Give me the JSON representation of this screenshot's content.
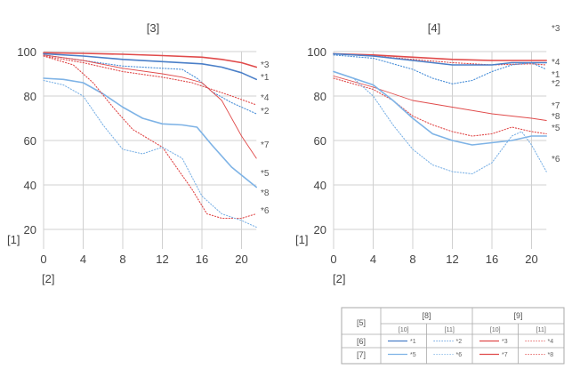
{
  "chart_data": [
    {
      "type": "line",
      "title": "[3]",
      "xlabel": "[2]",
      "ylabel": "[1]",
      "xlim": [
        0,
        21.5
      ],
      "ylim": [
        20,
        100
      ],
      "xticks": [
        "0",
        "4",
        "8",
        "12",
        "16",
        "20"
      ],
      "yticks": [
        "20",
        "40",
        "60",
        "80",
        "100"
      ],
      "grid": true,
      "series": [
        {
          "name": "*3",
          "color": "#e04a4a",
          "style": "solid",
          "x": [
            0,
            4,
            8,
            12,
            16,
            18,
            20,
            21.5
          ],
          "y": [
            99.5,
            99.2,
            98.8,
            98.2,
            97.5,
            96.5,
            95,
            93
          ]
        },
        {
          "name": "*1",
          "color": "#4a7fc8",
          "style": "solid",
          "x": [
            0,
            4,
            8,
            12,
            16,
            18,
            20,
            21.5
          ],
          "y": [
            99,
            98,
            96.5,
            95.5,
            94.5,
            93,
            90.5,
            87.5
          ]
        },
        {
          "name": "*4",
          "color": "#e04a4a",
          "style": "dotted",
          "x": [
            0,
            4,
            8,
            12,
            15,
            17,
            19,
            21.5
          ],
          "y": [
            98,
            95,
            91,
            88.5,
            86,
            83,
            80,
            76
          ]
        },
        {
          "name": "*2",
          "color": "#4a8fd8",
          "style": "dotted",
          "x": [
            0,
            4,
            8,
            12,
            14,
            15.5,
            17,
            19,
            21.5
          ],
          "y": [
            98.5,
            96,
            93.5,
            92.5,
            92,
            88,
            82,
            77,
            72
          ]
        },
        {
          "name": "*7",
          "color": "#e04a4a",
          "style": "solid",
          "thin": true,
          "x": [
            0,
            4,
            8,
            12,
            14,
            16,
            18,
            20,
            21.5
          ],
          "y": [
            98.5,
            96,
            92.5,
            90,
            88.5,
            86,
            78,
            62,
            52
          ]
        },
        {
          "name": "*5",
          "color": "#7eb3e6",
          "style": "solid",
          "x": [
            0,
            2,
            4,
            6,
            8,
            10,
            12,
            14,
            15.5,
            17,
            19,
            21.5
          ],
          "y": [
            88,
            87.5,
            86,
            81,
            75,
            70,
            67.5,
            67,
            66,
            58,
            48,
            39
          ]
        },
        {
          "name": "*8",
          "color": "#e04a4a",
          "style": "dotted",
          "x": [
            0,
            3,
            5,
            7,
            9,
            12,
            15,
            16.5,
            18,
            20,
            21.5
          ],
          "y": [
            98,
            94,
            86,
            75,
            65,
            57,
            38,
            27,
            25,
            25,
            27
          ]
        },
        {
          "name": "*6",
          "color": "#7eb3e6",
          "style": "dotted",
          "x": [
            0,
            2,
            4,
            6,
            8,
            10,
            12,
            14,
            16,
            18,
            20,
            21.5
          ],
          "y": [
            87,
            85,
            80,
            67,
            56,
            54,
            57,
            52,
            35,
            27,
            24,
            21
          ]
        }
      ],
      "series_labels": [
        "*3",
        "*1",
        "*4",
        "*2",
        "*7",
        "*5",
        "*8",
        "*6"
      ]
    },
    {
      "type": "line",
      "title": "[4]",
      "xlabel": "[2]",
      "ylabel": "[1]",
      "xlim": [
        0,
        21.5
      ],
      "ylim": [
        20,
        100
      ],
      "xticks": [
        "0",
        "4",
        "8",
        "12",
        "16",
        "20"
      ],
      "yticks": [
        "20",
        "40",
        "60",
        "80",
        "100"
      ],
      "grid": true,
      "series": [
        {
          "name": "*3",
          "color": "#e04a4a",
          "style": "solid",
          "x": [
            0,
            4,
            8,
            12,
            16,
            20,
            21.5
          ],
          "y": [
            99,
            98.5,
            97.5,
            96.5,
            96,
            96,
            96
          ]
        },
        {
          "name": "*4",
          "color": "#e04a4a",
          "style": "dotted",
          "x": [
            0,
            4,
            8,
            12,
            16,
            20,
            21.5
          ],
          "y": [
            99,
            98,
            96.5,
            95,
            94,
            94.5,
            94
          ]
        },
        {
          "name": "*1",
          "color": "#4a7fc8",
          "style": "solid",
          "x": [
            0,
            4,
            8,
            12,
            16,
            18,
            20,
            21.5
          ],
          "y": [
            99,
            98,
            96,
            94,
            94,
            95,
            95,
            95
          ]
        },
        {
          "name": "*2",
          "color": "#4a8fd8",
          "style": "dotted",
          "x": [
            0,
            4,
            8,
            10,
            12,
            14,
            16,
            18,
            20,
            21.5
          ],
          "y": [
            98.5,
            97,
            92,
            88,
            85.5,
            87,
            91,
            94,
            95,
            92
          ]
        },
        {
          "name": "*7",
          "color": "#e04a4a",
          "style": "solid",
          "thin": true,
          "x": [
            0,
            4,
            8,
            12,
            16,
            20,
            21.5
          ],
          "y": [
            89,
            84,
            78,
            75,
            72,
            70,
            69
          ]
        },
        {
          "name": "*8",
          "color": "#e04a4a",
          "style": "dotted",
          "x": [
            0,
            4,
            6,
            8,
            10,
            12,
            14,
            16,
            18,
            20,
            21.5
          ],
          "y": [
            88,
            83,
            78,
            71,
            67,
            64,
            62,
            63,
            66,
            64,
            63
          ]
        },
        {
          "name": "*5",
          "color": "#7eb3e6",
          "style": "solid",
          "x": [
            0,
            4,
            6,
            8,
            10,
            12,
            14,
            16,
            18,
            20,
            21.5
          ],
          "y": [
            91,
            85,
            78,
            70,
            63,
            60,
            58,
            59,
            60,
            62,
            62
          ]
        },
        {
          "name": "*6",
          "color": "#7eb3e6",
          "style": "dotted",
          "x": [
            0,
            2,
            4,
            6,
            8,
            10,
            12,
            14,
            16,
            18,
            19,
            20,
            21.5
          ],
          "y": [
            91,
            88,
            80,
            67,
            56,
            49,
            46,
            45,
            50,
            62,
            64,
            58,
            46
          ]
        }
      ],
      "series_labels": [
        "*3",
        "*4",
        "*1",
        "*2",
        "*7",
        "*8",
        "*5",
        "*6"
      ]
    }
  ],
  "legend_table": {
    "corner": "[5]",
    "groups": [
      "[8]",
      "[9]"
    ],
    "subheads": [
      "[10]",
      "[11]",
      "[10]",
      "[11]"
    ],
    "rows": [
      {
        "label": "[6]",
        "cells": [
          {
            "name": "*1",
            "color": "#4a7fc8",
            "style": "solid"
          },
          {
            "name": "*2",
            "color": "#4a8fd8",
            "style": "dotted"
          },
          {
            "name": "*3",
            "color": "#e04a4a",
            "style": "solid"
          },
          {
            "name": "*4",
            "color": "#e04a4a",
            "style": "dotted"
          }
        ]
      },
      {
        "label": "[7]",
        "cells": [
          {
            "name": "*5",
            "color": "#7eb3e6",
            "style": "solid"
          },
          {
            "name": "*6",
            "color": "#7eb3e6",
            "style": "dotted"
          },
          {
            "name": "*7",
            "color": "#e04a4a",
            "style": "solid"
          },
          {
            "name": "*8",
            "color": "#e04a4a",
            "style": "dotted"
          }
        ]
      }
    ]
  }
}
